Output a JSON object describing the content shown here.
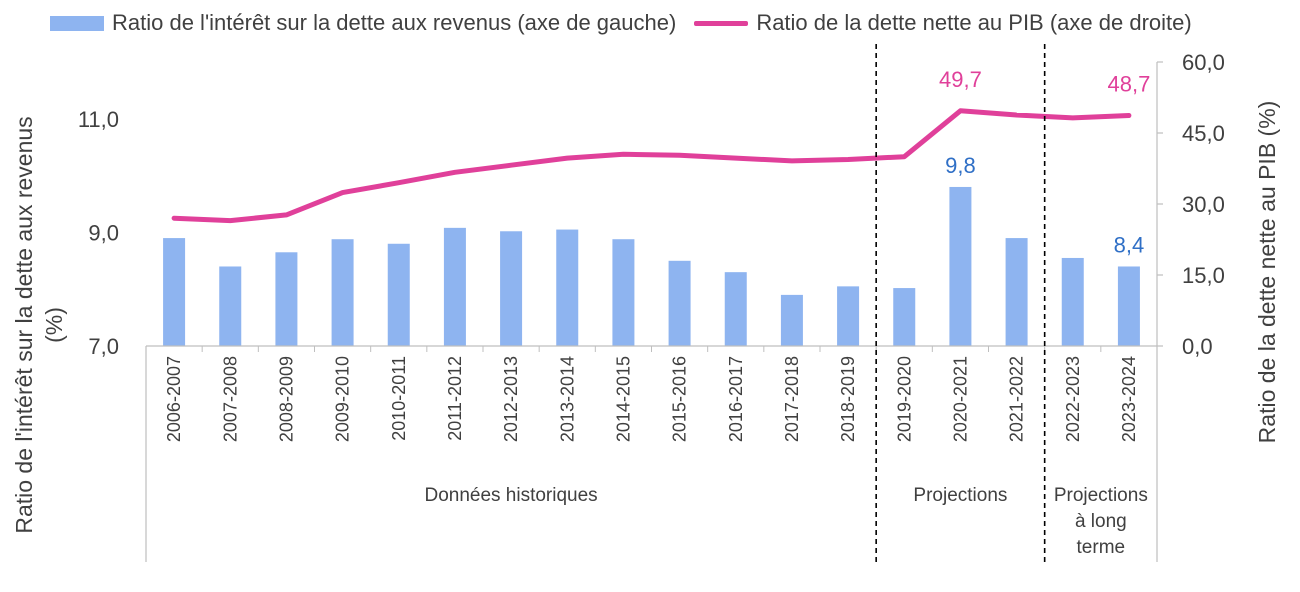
{
  "legend": {
    "bar_label": "Ratio de l'intérêt sur la dette aux revenus (axe de gauche)",
    "line_label": "Ratio de la dette nette au PIB (axe de droite)"
  },
  "colors": {
    "bar": "#8eb4f0",
    "line": "#e0409a",
    "bar_label": "#2f6fc6",
    "line_label": "#e0409a",
    "axis": "#bfbfbf",
    "text": "#404040"
  },
  "chart_data": {
    "type": "bar",
    "combo": "bar+line, dual axis",
    "categories": [
      "2006-2007",
      "2007-2008",
      "2008-2009",
      "2009-2010",
      "2010-2011",
      "2011-2012",
      "2012-2013",
      "2013-2014",
      "2014-2015",
      "2015-2016",
      "2016-2017",
      "2017-2018",
      "2018-2019",
      "2019-2020",
      "2020-2021",
      "2021-2022",
      "2022-2023",
      "2023-2024"
    ],
    "series": [
      {
        "name": "Ratio de l'intérêt sur la dette aux revenus (axe de gauche)",
        "type": "bar",
        "axis": "left",
        "values": [
          8.9,
          8.4,
          8.65,
          8.88,
          8.8,
          9.08,
          9.02,
          9.05,
          8.88,
          8.5,
          8.3,
          7.9,
          8.05,
          8.02,
          9.8,
          8.9,
          8.55,
          8.4
        ]
      },
      {
        "name": "Ratio de la dette nette au PIB (axe de droite)",
        "type": "line",
        "axis": "right",
        "values": [
          27.0,
          26.5,
          27.7,
          32.4,
          34.5,
          36.7,
          38.2,
          39.7,
          40.5,
          40.3,
          39.7,
          39.1,
          39.4,
          40.0,
          49.7,
          48.8,
          48.2,
          48.7
        ]
      }
    ],
    "ylabel_left": "Ratio de l'intérêt sur la dette aux revenus (%)",
    "ylabel_right": "Ratio de la dette nette au PIB (%)",
    "ylim_left": [
      7.0,
      12.0
    ],
    "ylim_right": [
      0.0,
      60.0
    ],
    "yticks_left": [
      "7,0",
      "9,0",
      "11,0"
    ],
    "yticks_right": [
      "0,0",
      "15,0",
      "30,0",
      "45,0",
      "60,0"
    ],
    "annotations": [
      {
        "series": 0,
        "index": 14,
        "text": "9,8"
      },
      {
        "series": 0,
        "index": 17,
        "text": "8,4"
      },
      {
        "series": 1,
        "index": 14,
        "text": "49,7"
      },
      {
        "series": 1,
        "index": 17,
        "text": "48,7"
      }
    ],
    "groups": [
      {
        "label": "Données historiques",
        "start": 0,
        "end": 12
      },
      {
        "label": "Projections",
        "start": 13,
        "end": 15
      },
      {
        "label": "Projections à long terme",
        "start": 16,
        "end": 17
      }
    ],
    "grid": false
  }
}
